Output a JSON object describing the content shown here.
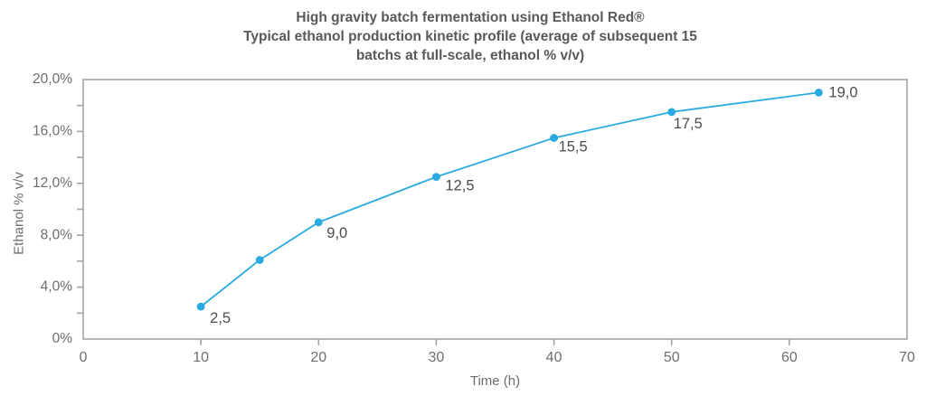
{
  "chart_data": {
    "type": "line",
    "title_lines": [
      "High gravity batch fermentation using Ethanol Red®",
      "Typical ethanol production kinetic profile (average of subsequent 15",
      "batchs at full-scale, ethanol % v/v)"
    ],
    "xlabel": "Time (h)",
    "ylabel": "Ethanol % v/v",
    "xlim": [
      0,
      70
    ],
    "ylim": [
      0,
      20
    ],
    "x_ticks": [
      {
        "value": 0,
        "label": "0"
      },
      {
        "value": 10,
        "label": "10"
      },
      {
        "value": 20,
        "label": "20"
      },
      {
        "value": 30,
        "label": "30"
      },
      {
        "value": 40,
        "label": "40"
      },
      {
        "value": 50,
        "label": "50"
      },
      {
        "value": 60,
        "label": "60"
      },
      {
        "value": 70,
        "label": "70"
      }
    ],
    "y_major_ticks": [
      {
        "value": 0,
        "label": "0%"
      },
      {
        "value": 4,
        "label": "4,0%"
      },
      {
        "value": 8,
        "label": "8,0%"
      },
      {
        "value": 12,
        "label": "12,0%"
      },
      {
        "value": 16,
        "label": "16,0%"
      },
      {
        "value": 20,
        "label": "20,0%"
      }
    ],
    "y_minor_step": 2,
    "grid": "off",
    "legend": "none",
    "series": [
      {
        "name": "Ethanol % v/v",
        "points": [
          {
            "x": 10,
            "y": 2.5,
            "label": "2,5",
            "label_dx": 10,
            "label_dy": 18
          },
          {
            "x": 15,
            "y": 6.1,
            "label": ""
          },
          {
            "x": 20,
            "y": 9.0,
            "label": "9,0",
            "label_dx": 9,
            "label_dy": 17
          },
          {
            "x": 30,
            "y": 12.5,
            "label": "12,5",
            "label_dx": 10,
            "label_dy": 15
          },
          {
            "x": 40,
            "y": 15.5,
            "label": "15,5",
            "label_dx": 5,
            "label_dy": 15
          },
          {
            "x": 50,
            "y": 17.5,
            "label": "17,5",
            "label_dx": 2,
            "label_dy": 18
          },
          {
            "x": 62.5,
            "y": 19.0,
            "label": "19,0",
            "label_dx": 11,
            "label_dy": 5
          }
        ]
      }
    ],
    "colors": {
      "line": "#29ABE2",
      "marker": "#1B9DDB",
      "axis": "#A2A4A7",
      "tick_text": "#6D6E71",
      "title_text": "#58595B",
      "point_label_text": "#4D4D4F",
      "background": "#FFFFFF"
    }
  }
}
